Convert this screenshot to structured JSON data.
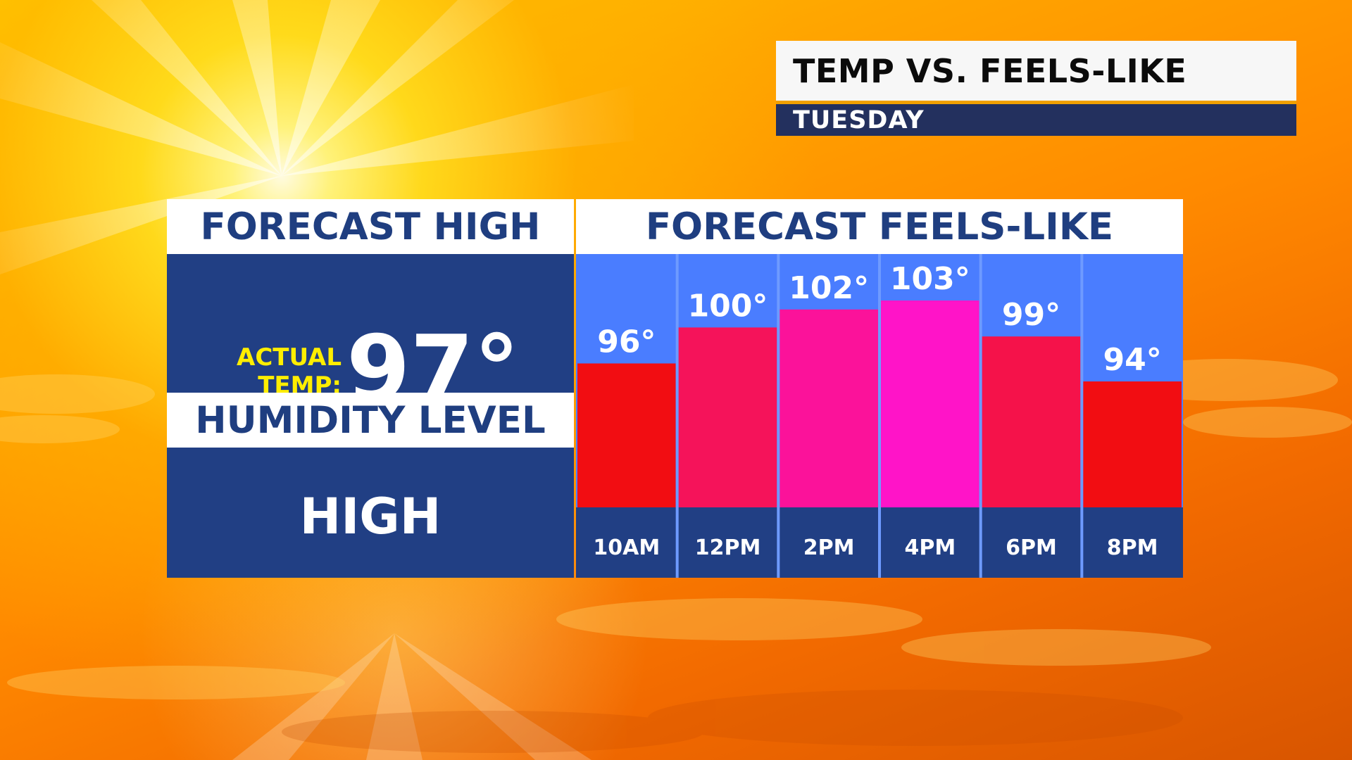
{
  "title_card": {
    "title": "TEMP VS. FEELS-LIKE",
    "subtitle": "TUESDAY"
  },
  "left_panel": {
    "forecast_high_header": "FORECAST HIGH",
    "actual_temp_label_line1": "ACTUAL",
    "actual_temp_label_line2": "TEMP:",
    "actual_temp_value": "97°",
    "humidity_header": "HUMIDITY LEVEL",
    "humidity_value": "HIGH"
  },
  "chart_data": {
    "type": "bar",
    "title": "FORECAST FEELS-LIKE",
    "categories": [
      "10AM",
      "12PM",
      "2PM",
      "4PM",
      "6PM",
      "8PM"
    ],
    "values": [
      96,
      100,
      102,
      103,
      99,
      94
    ],
    "value_labels": [
      "96°",
      "100°",
      "102°",
      "103°",
      "99°",
      "94°"
    ],
    "bar_colors": [
      "#f20d12",
      "#f5135a",
      "#fb129a",
      "#ff14c8",
      "#f5124a",
      "#f20d12"
    ],
    "colors": {
      "plot_background": "#4a7dff",
      "category_band": "#213f84",
      "column_divider": "#6e9aff"
    },
    "grid": false,
    "legend": "none"
  }
}
